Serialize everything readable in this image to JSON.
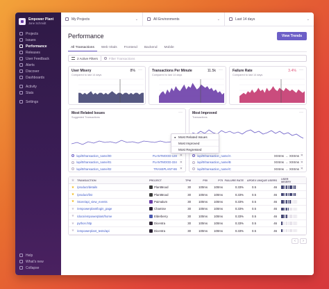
{
  "org": {
    "name": "Empower Plant",
    "user": "Jane Schmidt"
  },
  "sidebar": {
    "items": [
      {
        "label": "Projects",
        "icon": "projects-icon"
      },
      {
        "label": "Issues",
        "icon": "issues-icon"
      },
      {
        "label": "Performance",
        "icon": "performance-icon",
        "active": true
      },
      {
        "label": "Releases",
        "icon": "releases-icon"
      },
      {
        "label": "User Feedback",
        "icon": "feedback-icon"
      },
      {
        "label": "Alerts",
        "icon": "alerts-icon"
      },
      {
        "label": "Discover",
        "icon": "discover-icon"
      },
      {
        "label": "Dashboards",
        "icon": "dashboards-icon"
      }
    ],
    "items2": [
      {
        "label": "Activity",
        "icon": "activity-icon"
      },
      {
        "label": "Stats",
        "icon": "stats-icon"
      }
    ],
    "items3": [
      {
        "label": "Settings",
        "icon": "settings-icon"
      }
    ],
    "bottom": [
      {
        "label": "Help",
        "icon": "help-icon"
      },
      {
        "label": "What's new",
        "icon": "broadcast-icon"
      },
      {
        "label": "Collapse",
        "icon": "collapse-icon"
      }
    ]
  },
  "topbar": {
    "projects": "My Projects",
    "environments": "All Environments",
    "period": "Last 14 days"
  },
  "page": {
    "title": "Performance",
    "view_trends": "View Trends"
  },
  "tabs": [
    "All Transactions",
    "Web Vitals",
    "Frontend",
    "Backend",
    "Mobile"
  ],
  "filters": {
    "active": "2 Active Filters",
    "search_placeholder": "Filter Transactions"
  },
  "cards": [
    {
      "title": "User Misery",
      "sub": "Compared to last 14 days",
      "value": "8%",
      "value_color": "#2b2233",
      "color": "#444674"
    },
    {
      "title": "Transactions Per Minute",
      "sub": "Compared to last 14 days",
      "value": "11.5k",
      "value_color": "#2b2233",
      "color": "#6c3ea8"
    },
    {
      "title": "Failure Rate",
      "sub": "Compared to last 14 days",
      "value": "3.4%",
      "value_color": "#e1567c",
      "color": "#c4396f"
    }
  ],
  "card_axis": {
    "misery_ticks": [
      "10%",
      "8%",
      "6%",
      "4%",
      "2%",
      "0%"
    ],
    "tpm_ticks": [
      "16k",
      "14k",
      "12k",
      "10k",
      "8k"
    ],
    "fail_ticks": [
      "100%",
      "80%",
      "60%",
      "40%",
      "20%",
      "0%"
    ]
  },
  "panel_left": {
    "title": "Most Related Issues",
    "sub": "Suggested Transactions",
    "rows": [
      {
        "name": "/api/0/transaction_name/00",
        "id": "PLANTMOOD-128"
      },
      {
        "name": "/api/0/transaction_name/01",
        "id": "PLANTMOOD-334"
      },
      {
        "name": "/api/0/transaction_name/02",
        "id": "TRANSPLANT-86"
      }
    ]
  },
  "panel_right": {
    "title": "Most Improved",
    "sub": "Transactions",
    "rows": [
      {
        "name": "/api/0/transaction_name/A",
        "from": "XXXms",
        "to": "XXXms"
      },
      {
        "name": "/api/0/transaction_name/B",
        "from": "XXXms",
        "to": "XXXms"
      },
      {
        "name": "/api/0/transaction_name/C",
        "from": "XXXms",
        "to": "XXXms"
      }
    ]
  },
  "dropdown": {
    "items": [
      {
        "label": "Most Related Issues",
        "checked": true
      },
      {
        "label": "Most Improved",
        "checked": false
      },
      {
        "label": "Most Regressed",
        "checked": false
      }
    ]
  },
  "table": {
    "headers": {
      "transaction": "TRANSACTION",
      "project": "PROJECT",
      "tpm": "TPM",
      "p50": "P50",
      "p75": "P75",
      "failure": "FAILURE RATE",
      "apdex": "APDEX",
      "users": "UNIQUE USERS",
      "misery": "USER MISERY"
    },
    "rows": [
      {
        "starred": true,
        "tx": "/product/details",
        "project": "PlantMood",
        "tpm": "30",
        "p50": "100ms",
        "p75": "100ms",
        "fail": "0.33%",
        "apdex": "0.5",
        "users": "46",
        "misery": 0.9
      },
      {
        "starred": true,
        "tx": "/product/list",
        "project": "PlantMood",
        "tpm": "30",
        "p50": "100ms",
        "p75": "100ms",
        "fail": "0.33%",
        "apdex": "0.5",
        "users": "46",
        "misery": 0.9
      },
      {
        "starred": true,
        "tx": "/store/api_view_events",
        "project": "Paimalum",
        "tpm": "30",
        "p50": "100ms",
        "p75": "100ms",
        "fail": "0.33%",
        "apdex": "0.5",
        "users": "46",
        "misery": 0.6
      },
      {
        "starred": false,
        "tx": "/empowerplant/login_page",
        "project": "Chamise",
        "tpm": "30",
        "p50": "100ms",
        "p75": "100ms",
        "fail": "0.33%",
        "apdex": "0.5",
        "users": "46",
        "misery": 0.5
      },
      {
        "starred": false,
        "tx": "/docs/empowerplant/home",
        "project": "Elderberry",
        "tpm": "30",
        "p50": "100ms",
        "p75": "100ms",
        "fail": "0.33%",
        "apdex": "0.5",
        "users": "46",
        "misery": 0.4
      },
      {
        "starred": false,
        "tx": "python.http",
        "project": "Dicentra",
        "tpm": "30",
        "p50": "100ms",
        "p75": "100ms",
        "fail": "0.33%",
        "apdex": "0.5",
        "users": "46",
        "misery": 0.1
      },
      {
        "starred": false,
        "tx": "/empowerplant_tests/api",
        "project": "Dicentra",
        "tpm": "30",
        "p50": "100ms",
        "p75": "100ms",
        "fail": "0.33%",
        "apdex": "0.5",
        "users": "46",
        "misery": 0.1
      }
    ]
  },
  "colors": {
    "accent": "#6c5fc7",
    "sidebar": "#3b1d56",
    "link": "#3d57c9",
    "star": "#f2b712",
    "misery": "#444674",
    "failure": "#c4396f"
  }
}
